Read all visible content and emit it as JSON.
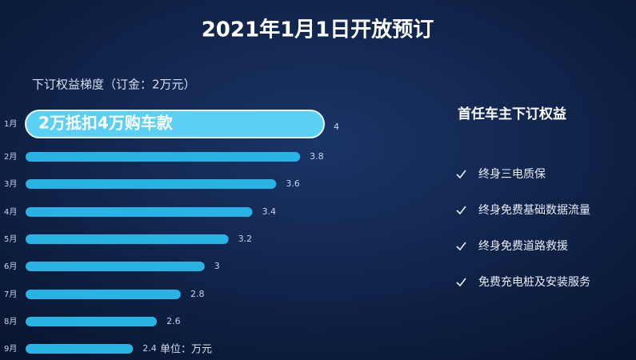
{
  "chart_data": {
    "type": "bar",
    "orientation": "horizontal",
    "title": "2021年1月1日开放预订",
    "subtitle": "下订权益梯度（订金：2万元）",
    "annotation": "2万抵扣4万购车款",
    "unit_note": "单位：万元",
    "categories": [
      "1月",
      "2月",
      "3月",
      "4月",
      "5月",
      "6月",
      "7月",
      "8月",
      "9月"
    ],
    "values": [
      4,
      3.8,
      3.6,
      3.4,
      3.2,
      3,
      2.8,
      2.6,
      2.4
    ],
    "color": "#29b3e4",
    "highlight_color": "#5ccff5",
    "xlim": [
      2,
      4
    ]
  },
  "side_panel": {
    "title": "首任车主下订权益",
    "items": [
      "终身三电质保",
      "终身免费基础数据流量",
      "终身免费道路救援",
      "免费充电桩及安装服务"
    ]
  }
}
